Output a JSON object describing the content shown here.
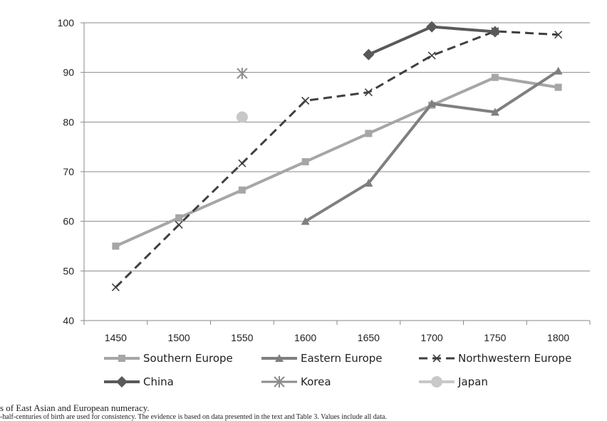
{
  "chart_data": {
    "type": "line",
    "title": "",
    "xlabel": "",
    "ylabel": "",
    "categories": [
      "1450",
      "1500",
      "1550",
      "1600",
      "1650",
      "1700",
      "1750",
      "1800"
    ],
    "ylim": [
      40,
      100
    ],
    "yticks": [
      40,
      50,
      60,
      70,
      80,
      90,
      100
    ],
    "grid": true,
    "legend_position": "bottom",
    "series": [
      {
        "name": "Southern Europe",
        "color": "#a6a6a6",
        "marker": "square",
        "dash": "solid",
        "values": [
          55,
          60.7,
          66.3,
          72,
          77.7,
          83.4,
          89,
          87
        ]
      },
      {
        "name": "Eastern Europe",
        "color": "#7f7f7f",
        "marker": "triangle",
        "dash": "solid",
        "values": [
          null,
          null,
          null,
          60,
          67.7,
          83.7,
          82,
          90.3
        ]
      },
      {
        "name": "Northwestern Europe",
        "color": "#404040",
        "marker": "x",
        "dash": "dashed",
        "values": [
          46.7,
          59.3,
          71.7,
          84.3,
          86,
          93.4,
          98.3,
          97.6
        ]
      },
      {
        "name": "China",
        "color": "#595959",
        "marker": "diamond",
        "dash": "solid",
        "values": [
          null,
          null,
          null,
          null,
          93.6,
          99.2,
          98.2,
          null
        ]
      },
      {
        "name": "Korea",
        "color": "#8c8c8c",
        "marker": "asterisk",
        "dash": "solid",
        "values": [
          null,
          null,
          89.8,
          null,
          null,
          null,
          null,
          null
        ]
      },
      {
        "name": "Japan",
        "color": "#c8c8c8",
        "marker": "circle",
        "dash": "solid",
        "values": [
          null,
          null,
          81,
          null,
          null,
          null,
          null,
          null
        ]
      }
    ]
  },
  "caption": {
    "line1": "s of East Asian and European numeracy.",
    "line2": "-half-centuries of birth are used for consistency. The evidence is based on data presented in the text and Table 3. Values include all data."
  }
}
